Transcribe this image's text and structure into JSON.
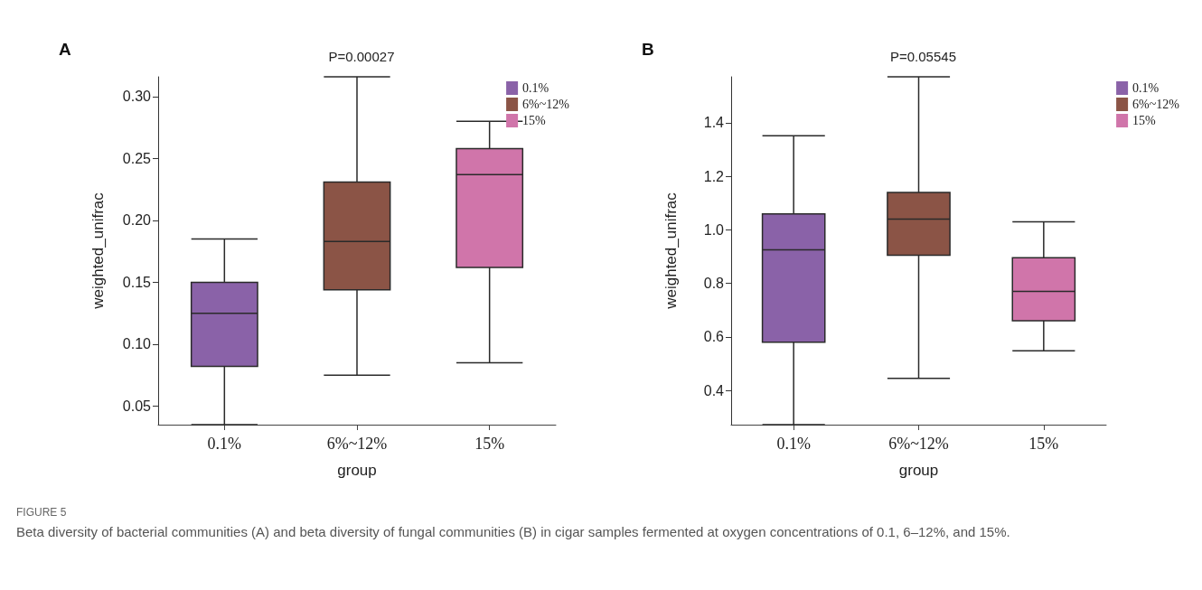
{
  "chart_data": [
    {
      "type": "box",
      "title": "P=0.00027",
      "xlabel": "group",
      "ylabel": "weighted_unifrac",
      "categories": [
        "0.1%",
        "6%~12%",
        "15%"
      ],
      "series": [
        {
          "name": "0.1%",
          "color": "#8a62a8",
          "boxes": [
            {
              "low": 0.035,
              "q1": 0.082,
              "median": 0.125,
              "q3": 0.15,
              "high": 0.185
            },
            null,
            null
          ]
        },
        {
          "name": "6%~12%",
          "color": "#8b5446",
          "boxes": [
            null,
            {
              "low": 0.075,
              "q1": 0.144,
              "median": 0.183,
              "q3": 0.231,
              "high": 0.316
            },
            null
          ]
        },
        {
          "name": "15%",
          "color": "#d075aa",
          "boxes": [
            null,
            null,
            {
              "low": 0.085,
              "q1": 0.162,
              "median": 0.237,
              "q3": 0.258,
              "high": 0.28
            }
          ]
        }
      ],
      "ylim": [
        0.035,
        0.316
      ],
      "yticks": [
        0.05,
        {
          "value": 0.1,
          "label": "0.10"
        },
        0.15,
        {
          "value": 0.2,
          "label": "0.20"
        },
        0.25,
        {
          "value": 0.3,
          "label": "0.30"
        }
      ],
      "grid": false,
      "legend": "top right",
      "annotations": [
        "A",
        "FIGURE 5",
        "Beta diversity of bacterial communities (A) and beta diversity of fungal communities (B) in cigar samples fermented at oxygen concentrations of 0.1, 6–12%, and 15%."
      ]
    },
    {
      "type": "box",
      "title": "P=0.05545",
      "xlabel": "group",
      "ylabel": "weighted_unifrac",
      "categories": [
        "0.1%",
        "6%~12%",
        "15%"
      ],
      "series": [
        {
          "name": "0.1%",
          "color": "#8a62a8",
          "boxes": [
            {
              "low": 0.272,
              "q1": 0.58,
              "median": 0.925,
              "q3": 1.06,
              "high": 1.352
            },
            null,
            null
          ]
        },
        {
          "name": "6%~12%",
          "color": "#8b5446",
          "boxes": [
            null,
            {
              "low": 0.445,
              "q1": 0.905,
              "median": 1.04,
              "q3": 1.14,
              "high": 1.572
            },
            null
          ]
        },
        {
          "name": "15%",
          "color": "#d075aa",
          "boxes": [
            null,
            null,
            {
              "low": 0.548,
              "q1": 0.66,
              "median": 0.77,
              "q3": 0.896,
              "high": 1.03
            }
          ]
        }
      ],
      "ylim": [
        0.272,
        1.572
      ],
      "yticks": [
        0.4,
        0.6,
        0.8,
        {
          "value": 1,
          "label": "1.0"
        },
        1.2,
        1.4
      ],
      "grid": false,
      "legend": "top right",
      "annotations": [
        "B"
      ]
    }
  ]
}
